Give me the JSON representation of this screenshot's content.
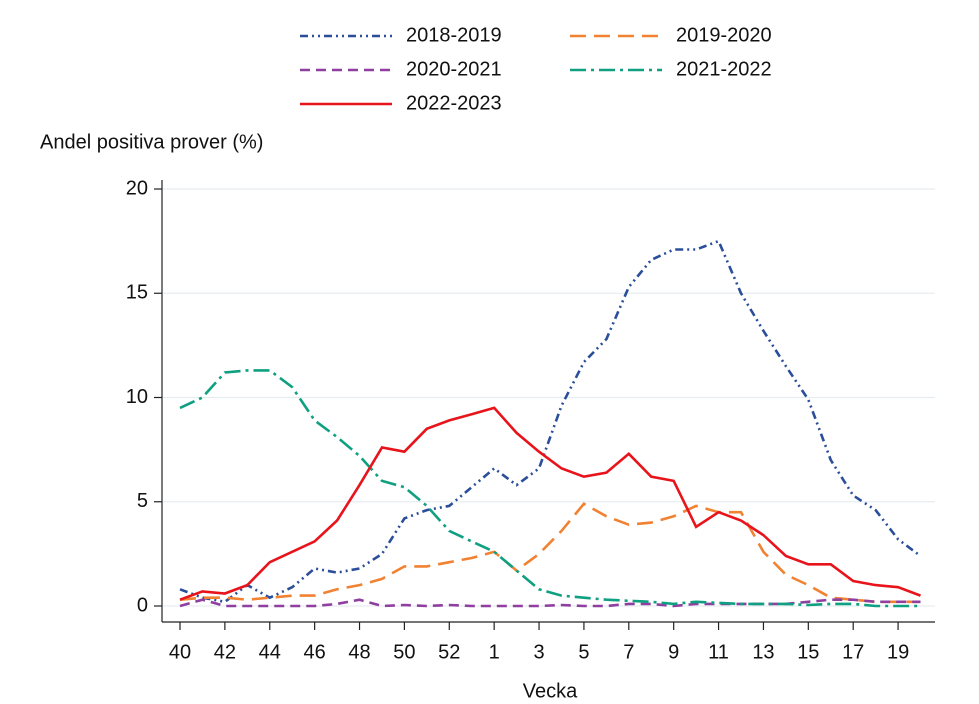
{
  "chart_data": {
    "type": "line",
    "ylabel": "Andel positiva prover (%)",
    "xlabel": "Vecka",
    "categories": [
      40,
      null,
      42,
      null,
      44,
      null,
      46,
      null,
      48,
      null,
      50,
      null,
      52,
      null,
      1,
      null,
      3,
      null,
      5,
      null,
      7,
      null,
      9,
      null,
      11,
      null,
      13,
      null,
      15,
      null,
      17,
      null,
      19,
      null
    ],
    "ylim": [
      0,
      20
    ],
    "yticks": [
      0,
      5,
      10,
      15,
      20
    ],
    "grid": true,
    "series": [
      {
        "name": "2018-2019",
        "color": "#2b4e9b",
        "dash": "dash-dot-dot",
        "values": [
          0.8,
          0.4,
          0.2,
          1.0,
          0.4,
          0.9,
          1.8,
          1.6,
          1.8,
          2.5,
          4.2,
          4.6,
          4.8,
          5.7,
          6.6,
          5.8,
          6.6,
          9.6,
          11.7,
          12.8,
          15.3,
          16.6,
          17.1,
          17.1,
          17.5,
          15.0,
          13.2,
          11.5,
          9.9,
          7.0,
          5.3,
          4.6,
          3.2,
          2.4
        ]
      },
      {
        "name": "2019-2020",
        "color": "#f08232",
        "dash": "long-dash",
        "values": [
          0.3,
          0.4,
          0.4,
          0.3,
          0.4,
          0.5,
          0.5,
          0.8,
          1.0,
          1.3,
          1.9,
          1.9,
          2.1,
          2.3,
          2.6,
          1.7,
          2.5,
          3.6,
          4.9,
          4.3,
          3.9,
          4.0,
          4.3,
          4.8,
          4.5,
          4.5,
          2.6,
          1.5,
          1.0,
          0.4,
          0.3,
          0.2,
          0.2,
          0.2
        ]
      },
      {
        "name": "2020-2021",
        "color": "#8e3fa0",
        "dash": "dash",
        "values": [
          0.0,
          0.3,
          0.0,
          0.0,
          0.0,
          0.0,
          0.0,
          0.1,
          0.3,
          0.0,
          0.05,
          0.0,
          0.05,
          0.0,
          0.0,
          0.0,
          0.0,
          0.05,
          0.0,
          0.0,
          0.1,
          0.1,
          0.0,
          0.1,
          0.1,
          0.1,
          0.1,
          0.1,
          0.2,
          0.3,
          0.3,
          0.2,
          0.2,
          0.2
        ]
      },
      {
        "name": "2021-2022",
        "color": "#0ea080",
        "dash": "dash-dot",
        "values": [
          9.5,
          10.0,
          11.2,
          11.3,
          11.3,
          10.5,
          8.9,
          8.1,
          7.2,
          6.0,
          5.7,
          4.8,
          3.6,
          3.1,
          2.6,
          1.7,
          0.8,
          0.5,
          0.4,
          0.3,
          0.25,
          0.2,
          0.1,
          0.2,
          0.15,
          0.1,
          0.1,
          0.1,
          0.05,
          0.1,
          0.1,
          0.0,
          0.0,
          0.0
        ]
      },
      {
        "name": "2022-2023",
        "color": "#e8141b",
        "dash": "solid",
        "values": [
          0.3,
          0.7,
          0.6,
          1.0,
          2.1,
          2.6,
          3.1,
          4.1,
          5.8,
          7.6,
          7.4,
          8.5,
          8.9,
          9.2,
          9.5,
          8.3,
          7.4,
          6.6,
          6.2,
          6.4,
          7.3,
          6.2,
          6.0,
          3.8,
          4.5,
          4.1,
          3.4,
          2.4,
          2.0,
          2.0,
          1.2,
          1.0,
          0.9,
          0.5
        ]
      }
    ]
  }
}
